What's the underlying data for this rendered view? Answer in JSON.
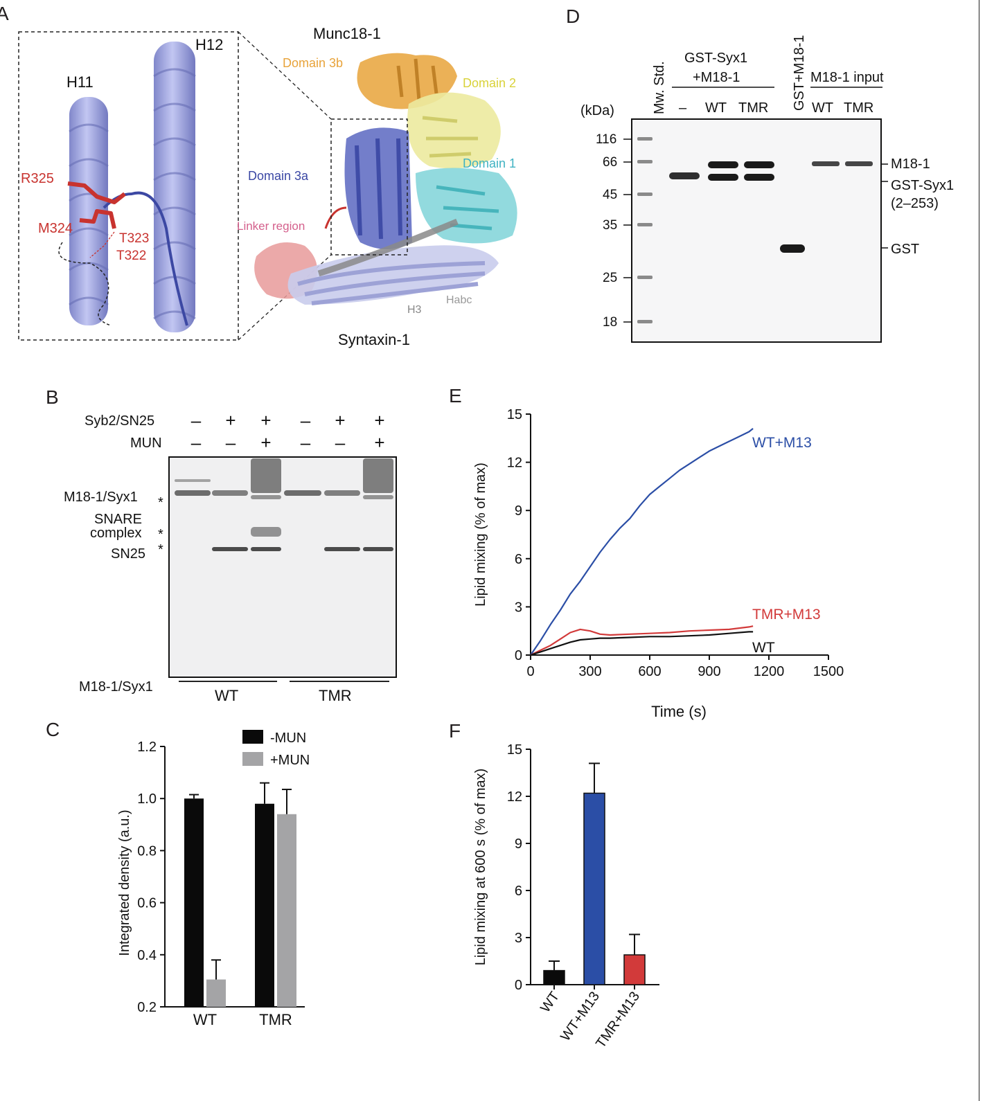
{
  "panelA": {
    "letter": "A",
    "title": "Munc18-1",
    "subtitle": "Syntaxin-1",
    "helices": [
      "H11",
      "H12"
    ],
    "residues": [
      "R325",
      "M324",
      "T323",
      "T322"
    ],
    "domains": {
      "d3b": "Domain 3b",
      "d2": "Domain 2",
      "d1": "Domain 1",
      "d3a": "Domain 3a",
      "linker": "Linker region",
      "h3": "H3",
      "habc": "Habc"
    },
    "colors": {
      "d3b": "#e8a33a",
      "d2": "#e4e07e",
      "d1": "#4fc4cc",
      "d3a": "#4a5bb5",
      "linker": "#d4608c",
      "residue": "#c8332f",
      "helix": "#8d95d6",
      "habc": "#999999"
    }
  },
  "panelB": {
    "letter": "B",
    "row_labels": [
      "Syb2/SN25",
      "MUN"
    ],
    "syb2": [
      "–",
      "+",
      "+",
      "–",
      "+",
      "+"
    ],
    "mun": [
      "–",
      "–",
      "+",
      "–",
      "–",
      "+"
    ],
    "band_labels": {
      "m18syx": "M18-1/Syx1",
      "snare1": "SNARE",
      "snare2": "complex",
      "sn25": "SN25",
      "star": "*"
    },
    "bottom_label": "M18-1/Syx1",
    "groups": [
      "WT",
      "TMR"
    ]
  },
  "panelC": {
    "letter": "C",
    "chart_data": {
      "type": "bar",
      "categories": [
        "WT",
        "TMR"
      ],
      "ylabel": "Integrated density (a.u.)",
      "ylim": [
        0.2,
        1.2
      ],
      "yticks": [
        "0.2",
        "0.4",
        "0.6",
        "0.8",
        "1.0",
        "1.2"
      ],
      "series": [
        {
          "name": "-MUN",
          "values": [
            1.0,
            0.98
          ],
          "errors": [
            0.015,
            0.08
          ],
          "color": "#0a0a0a"
        },
        {
          "name": "+MUN",
          "values": [
            0.305,
            0.94
          ],
          "errors": [
            0.075,
            0.095
          ],
          "color": "#a4a4a6"
        }
      ]
    }
  },
  "panelD": {
    "letter": "D",
    "unit": "(kDa)",
    "lane_headers": {
      "mw": "Mw. Std.",
      "gst_syx_1": "GST-Syx1",
      "gst_syx_2": "+M18-1",
      "gst_m18": "GST+M18-1",
      "input": "M18-1 input"
    },
    "lane_labels": [
      "–",
      "WT",
      "TMR",
      "WT",
      "TMR"
    ],
    "markers": [
      "116",
      "66",
      "45",
      "35",
      "25",
      "18"
    ],
    "right_labels": [
      "M18-1",
      "GST-Syx1",
      "(2–253)",
      "GST"
    ]
  },
  "panelE": {
    "letter": "E",
    "chart_data": {
      "type": "line",
      "xlabel": "Time (s)",
      "ylabel": "Lipid mixing (% of max)",
      "xlim": [
        0,
        1500
      ],
      "ylim": [
        0,
        15
      ],
      "xticks": [
        "0",
        "300",
        "600",
        "900",
        "1200",
        "1500"
      ],
      "yticks": [
        "0",
        "3",
        "6",
        "9",
        "12",
        "15"
      ],
      "series": [
        {
          "name": "WT+M13",
          "color": "#2b4ea6",
          "x": [
            0,
            50,
            100,
            150,
            200,
            250,
            300,
            350,
            400,
            450,
            500,
            550,
            600,
            650,
            700,
            750,
            800,
            850,
            900,
            950,
            1000,
            1050,
            1100,
            1120
          ],
          "y": [
            0,
            0.9,
            1.9,
            2.8,
            3.8,
            4.6,
            5.5,
            6.4,
            7.2,
            7.9,
            8.5,
            9.3,
            10.0,
            10.5,
            11.0,
            11.5,
            11.9,
            12.3,
            12.7,
            13.0,
            13.3,
            13.6,
            13.9,
            14.1
          ]
        },
        {
          "name": "TMR+M13",
          "color": "#d23a3a",
          "x": [
            0,
            50,
            100,
            150,
            200,
            250,
            300,
            350,
            400,
            500,
            600,
            700,
            800,
            900,
            1000,
            1100,
            1120
          ],
          "y": [
            0,
            0.3,
            0.6,
            1.0,
            1.4,
            1.6,
            1.5,
            1.3,
            1.25,
            1.3,
            1.35,
            1.4,
            1.5,
            1.55,
            1.6,
            1.75,
            1.8
          ]
        },
        {
          "name": "WT",
          "color": "#111111",
          "x": [
            0,
            50,
            100,
            150,
            200,
            250,
            300,
            350,
            400,
            500,
            600,
            700,
            800,
            900,
            1000,
            1100,
            1120
          ],
          "y": [
            0,
            0.2,
            0.4,
            0.6,
            0.8,
            0.95,
            1.0,
            1.05,
            1.05,
            1.1,
            1.15,
            1.15,
            1.2,
            1.25,
            1.35,
            1.45,
            1.45
          ]
        }
      ]
    }
  },
  "panelF": {
    "letter": "F",
    "chart_data": {
      "type": "bar",
      "categories": [
        "WT",
        "WT+M13",
        "TMR+M13"
      ],
      "ylabel": "Lipid mixing at 600 s (% of max)",
      "ylim": [
        0,
        15
      ],
      "yticks": [
        "0",
        "3",
        "6",
        "9",
        "12",
        "15"
      ],
      "values": [
        0.9,
        12.2,
        1.9
      ],
      "errors": [
        0.6,
        1.9,
        1.3
      ],
      "colors": [
        "#0a0a0a",
        "#2b4ea6",
        "#d23a3a"
      ]
    }
  }
}
